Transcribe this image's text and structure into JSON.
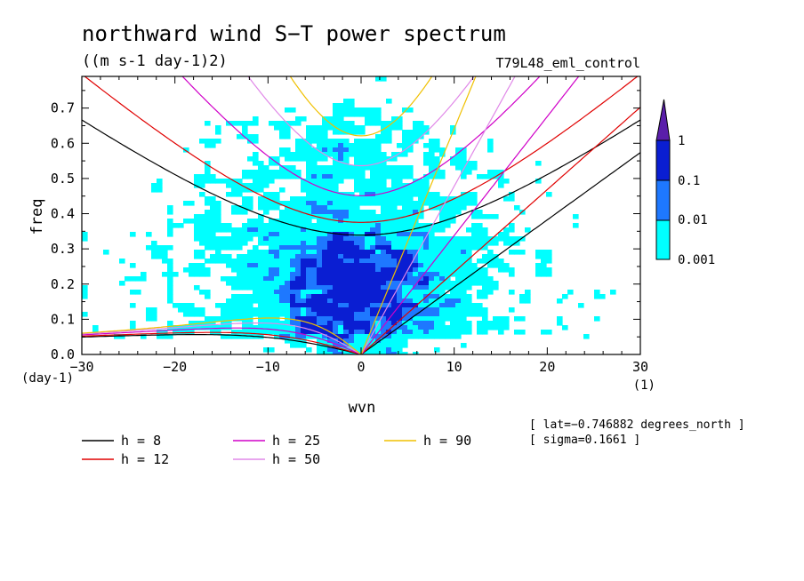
{
  "chart_data": {
    "type": "heatmap",
    "title": "northward wind S−T power spectrum",
    "units": "((m s-1 day-1)2)",
    "run_name": "T79L48_eml_control",
    "xlabel": "wvn",
    "ylabel": "freq",
    "x_unit": "(1)",
    "y_unit": "(day-1)",
    "xlim": [
      -30,
      30
    ],
    "ylim": [
      0,
      0.79
    ],
    "x_ticks": [
      -30,
      -20,
      -10,
      0,
      10,
      20,
      30
    ],
    "x_tick_labels": [
      "−30",
      "−20",
      "−10",
      "0",
      "10",
      "20",
      "30"
    ],
    "y_ticks": [
      0,
      0.1,
      0.2,
      0.3,
      0.4,
      0.5,
      0.6,
      0.7
    ],
    "y_tick_labels": [
      "0.0",
      "0.1",
      "0.2",
      "0.3",
      "0.4",
      "0.5",
      "0.6",
      "0.7"
    ],
    "colorbar": {
      "levels": [
        0.001,
        0.01,
        0.1,
        1
      ],
      "labels": [
        "0.001",
        "0.01",
        "0.1",
        "1"
      ],
      "colors": [
        "#00ffff",
        "#1e78ff",
        "#0a1ed2",
        "#5a1eaa"
      ],
      "extend": "max"
    },
    "dispersion_curves": [
      {
        "name": "h = 8",
        "h": 8,
        "color": "#000000"
      },
      {
        "name": "h = 12",
        "h": 12,
        "color": "#e00000"
      },
      {
        "name": "h = 25",
        "h": 25,
        "color": "#d000c8"
      },
      {
        "name": "h = 50",
        "h": 50,
        "color": "#e088e8"
      },
      {
        "name": "h = 90",
        "h": 90,
        "color": "#f0c000"
      }
    ],
    "annotations": [
      "[ lat=−0.746882 degrees_north ]",
      "[ sigma=0.1661 ]"
    ]
  },
  "legend_items": [
    {
      "label": "h =  8",
      "color": "#000000"
    },
    {
      "label": "h = 12",
      "color": "#e00000"
    },
    {
      "label": "h = 25",
      "color": "#d000c8"
    },
    {
      "label": "h = 50",
      "color": "#e088e8"
    },
    {
      "label": "h = 90",
      "color": "#f0c000"
    }
  ]
}
